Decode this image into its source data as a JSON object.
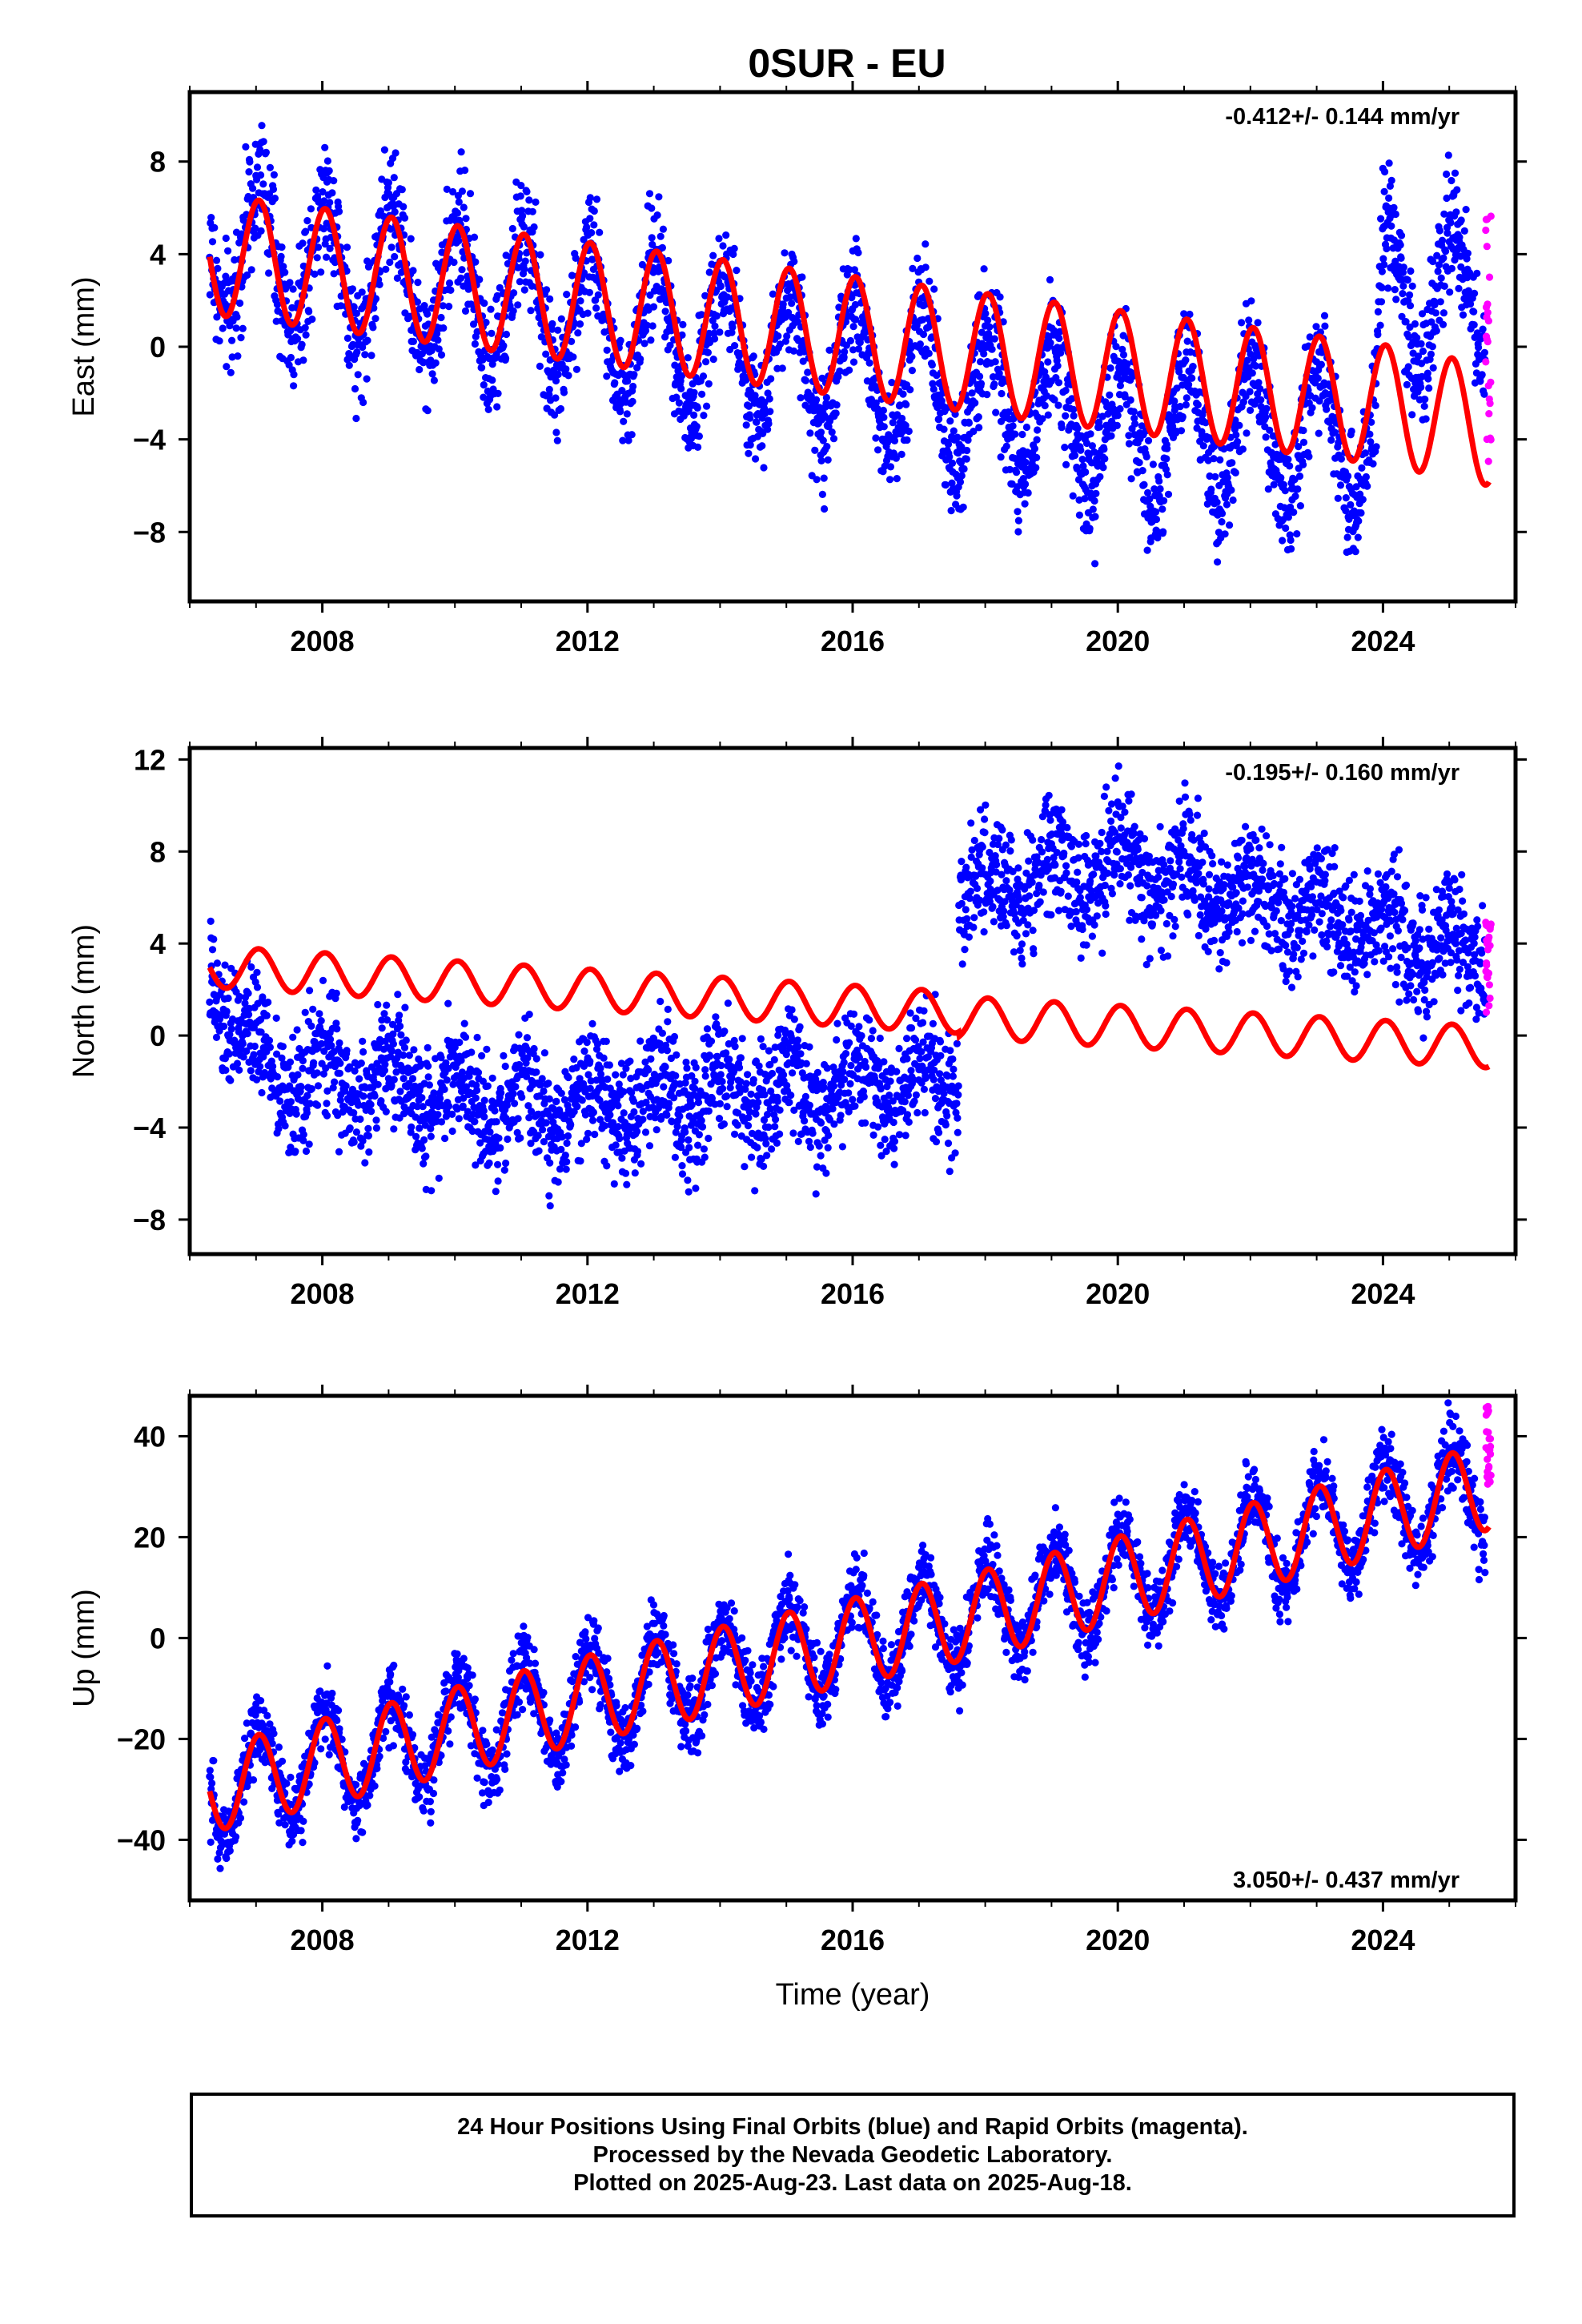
{
  "title": "0SUR - EU",
  "chart_data": [
    {
      "type": "scatter",
      "name": "east",
      "ylabel": "East (mm)",
      "xlabel": "",
      "xlim": [
        2006.0,
        2026.0
      ],
      "ylim": [
        -11.0,
        11.0
      ],
      "xticks": [
        2008,
        2012,
        2016,
        2020,
        2024
      ],
      "yticks": [
        -8,
        -4,
        0,
        4,
        8
      ],
      "rate_label": "-0.412+/- 0.144 mm/yr",
      "rate_position": "top-right",
      "grid": false,
      "model": {
        "description": "red fitted curve",
        "trend": [
          [
            2006.3,
            4.0
          ],
          [
            2024.0,
            -2.5
          ],
          [
            2025.6,
            -3.4
          ]
        ],
        "seasonal_amplitude": 2.6
      },
      "data_trend": [
        [
          2006.3,
          4.5
        ],
        [
          2017.0,
          -1.5
        ],
        [
          2020.0,
          -3.8
        ],
        [
          2023.9,
          -3.5
        ],
        [
          2024.0,
          2.5
        ],
        [
          2025.6,
          2.0
        ]
      ],
      "scatter_spread": 1.6,
      "rapid_points": {
        "x_range": [
          2025.55,
          2025.63
        ],
        "y_range": [
          -5.5,
          6.0
        ]
      }
    },
    {
      "type": "scatter",
      "name": "north",
      "ylabel": "North (mm)",
      "xlabel": "",
      "xlim": [
        2006.0,
        2026.0
      ],
      "ylim": [
        -9.5,
        12.5
      ],
      "xticks": [
        2008,
        2012,
        2016,
        2020,
        2024
      ],
      "yticks": [
        -8,
        -4,
        0,
        4,
        8,
        12
      ],
      "rate_label": "-0.195+/- 0.160 mm/yr",
      "rate_position": "top-right",
      "grid": false,
      "model": {
        "description": "red fitted curve with offset",
        "trend": [
          [
            2006.3,
            3.0
          ],
          [
            2017.6,
            1.0
          ],
          [
            2017.6,
            0.8
          ],
          [
            2025.6,
            -0.5
          ]
        ],
        "seasonal_amplitude": 0.9
      },
      "data_trend": [
        [
          2006.3,
          2.5
        ],
        [
          2007.2,
          -1.5
        ],
        [
          2011.5,
          -3.0
        ],
        [
          2017.6,
          -2.0
        ],
        [
          2017.6,
          6.0
        ],
        [
          2020.0,
          7.5
        ],
        [
          2025.6,
          3.5
        ]
      ],
      "scatter_spread": 1.6,
      "rapid_points": {
        "x_range": [
          2025.55,
          2025.63
        ],
        "y_range": [
          1.0,
          5.0
        ]
      }
    },
    {
      "type": "scatter",
      "name": "up",
      "ylabel": "Up (mm)",
      "xlabel": "Time (year)",
      "xlim": [
        2006.0,
        2026.0
      ],
      "ylim": [
        -52.0,
        48.0
      ],
      "xticks": [
        2008,
        2012,
        2016,
        2020,
        2024
      ],
      "yticks": [
        -40,
        -20,
        0,
        20,
        40
      ],
      "rate_label": "3.050+/- 0.437 mm/yr",
      "rate_position": "bottom-right",
      "grid": false,
      "model": {
        "description": "red fitted curve",
        "trend": [
          [
            2006.3,
            -30.0
          ],
          [
            2012.0,
            -12.0
          ],
          [
            2018.0,
            5.0
          ],
          [
            2025.6,
            30.0
          ]
        ],
        "seasonal_amplitude": 8.5
      },
      "data_trend": [
        [
          2006.3,
          -30.0
        ],
        [
          2012.0,
          -12.0
        ],
        [
          2018.0,
          5.0
        ],
        [
          2025.6,
          30.0
        ]
      ],
      "scatter_spread": 4.5,
      "rapid_points": {
        "x_range": [
          2025.55,
          2025.63
        ],
        "y_range": [
          30.0,
          46.0
        ]
      }
    }
  ],
  "colors": {
    "final_orbits": "#0000ff",
    "rapid_orbits": "#ff00ff",
    "model": "#ff0000",
    "axes": "#000000"
  },
  "caption": {
    "line1": "24 Hour Positions Using Final Orbits (blue) and Rapid Orbits (magenta).",
    "line2": "Processed by the Nevada Geodetic Laboratory.",
    "line3": "Plotted on 2025-Aug-23. Last data on 2025-Aug-18."
  }
}
